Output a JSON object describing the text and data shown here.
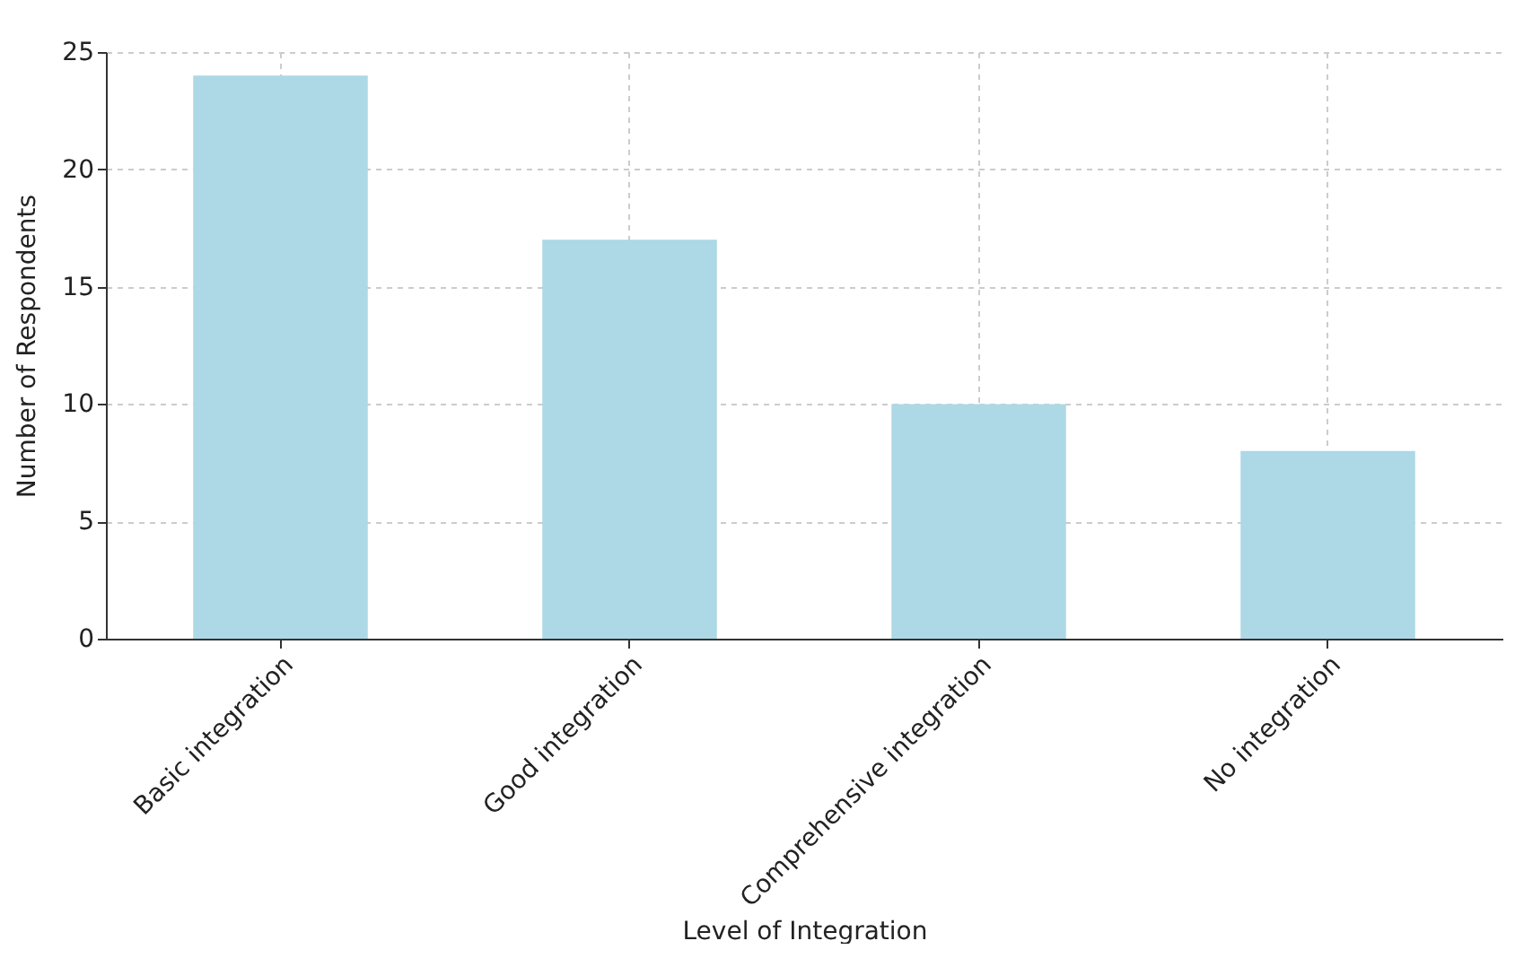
{
  "chart_data": {
    "type": "bar",
    "xlabel": "Level of Integration",
    "ylabel": "Number of Respondents",
    "categories": [
      "Basic integration",
      "Good integration",
      "Comprehensive integration",
      "No integration"
    ],
    "values": [
      24,
      17,
      10,
      8
    ],
    "color": "#add8e6",
    "ylim": [
      0,
      25
    ],
    "yticks": [
      0,
      5,
      10,
      15,
      20,
      25
    ],
    "grid": true
  }
}
